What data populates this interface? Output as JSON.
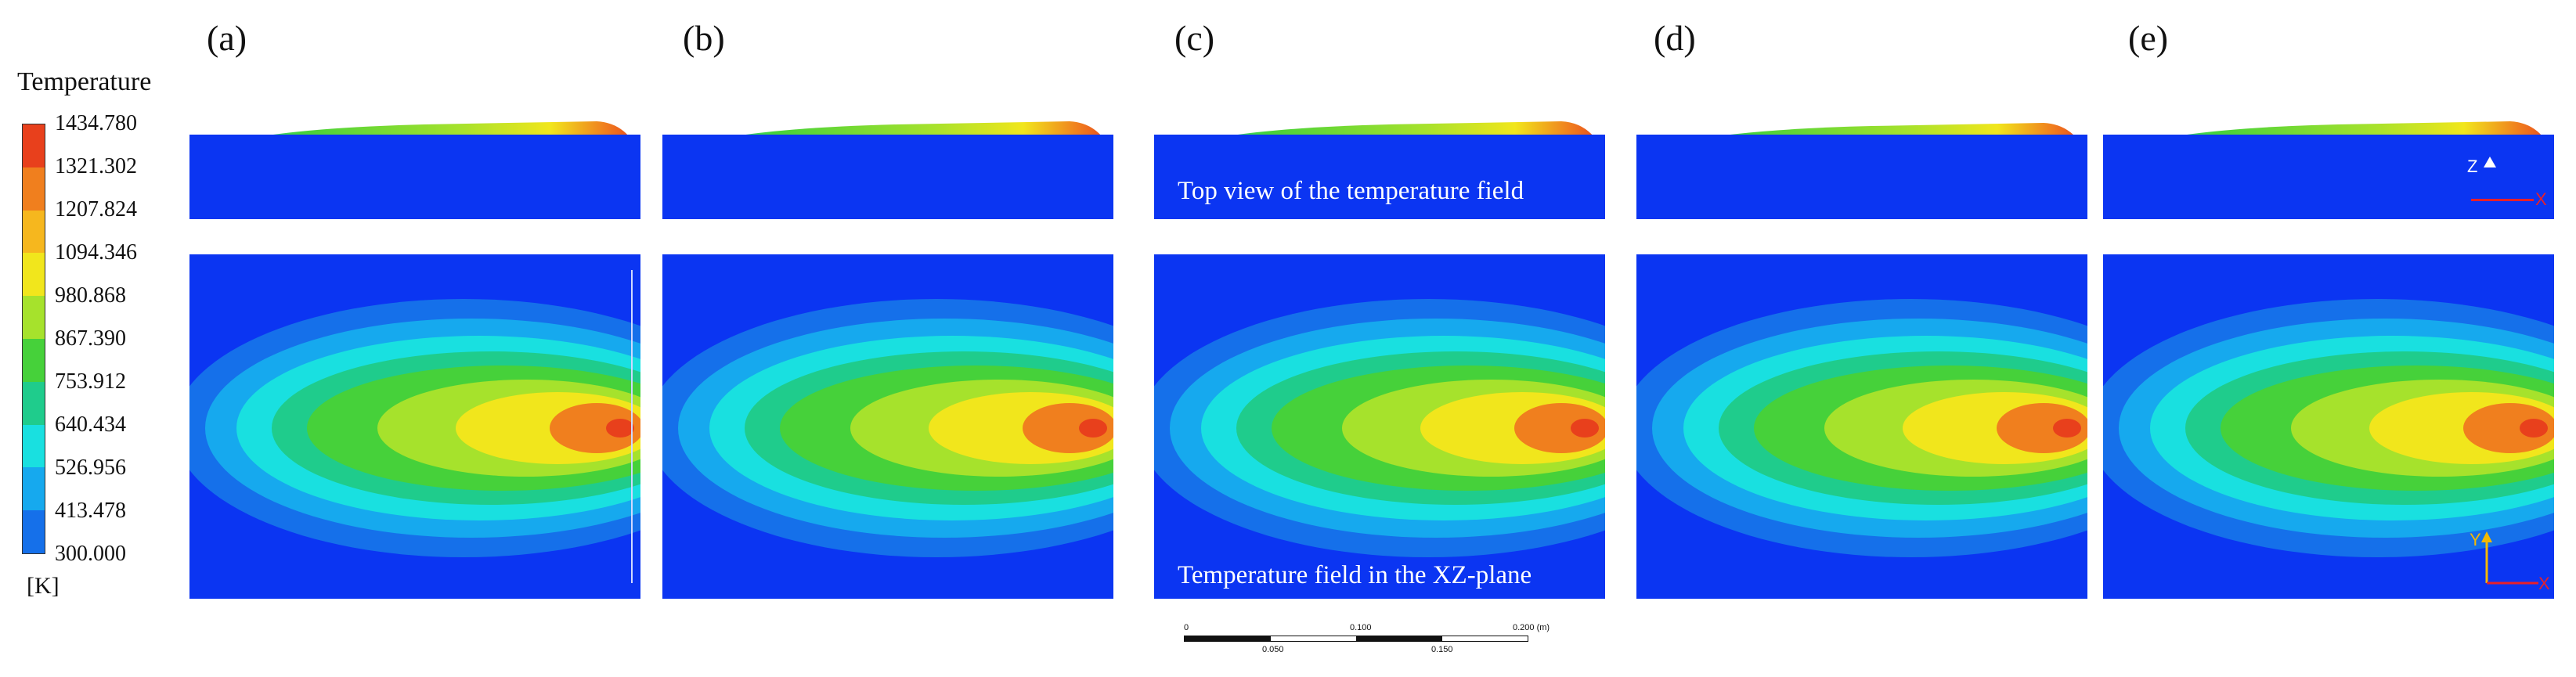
{
  "legend": {
    "title": "Temperature",
    "unit": "[K]",
    "ticks": [
      "1434.780",
      "1321.302",
      "1207.824",
      "1094.346",
      "980.868",
      "867.390",
      "753.912",
      "640.434",
      "526.956",
      "413.478",
      "300.000"
    ],
    "colors": [
      "#e8401c",
      "#f07f1e",
      "#f6b71e",
      "#f1e61c",
      "#a6e22c",
      "#46d13a",
      "#1fcc8c",
      "#19e0e0",
      "#16a9ee",
      "#1570ea"
    ]
  },
  "panels": [
    {
      "label": "(a)"
    },
    {
      "label": "(b)"
    },
    {
      "label": "(c)"
    },
    {
      "label": "(d)"
    },
    {
      "label": "(e)"
    }
  ],
  "annotations": {
    "top_view": "Top view of the temperature field",
    "xz_plane": "Temperature field in the XZ-plane"
  },
  "axes": {
    "side": {
      "up": "Z",
      "right": "X"
    },
    "top": {
      "up": "Y",
      "right": "X"
    }
  },
  "scalebar": {
    "top_labels": [
      "0",
      "0.100",
      "0.200 (m)"
    ],
    "bottom_labels": [
      "0.050",
      "0.150"
    ]
  },
  "colors": {
    "background_field": "#0b35f2",
    "axis_arrow_up": "#f5b800",
    "axis_arrow_right": "#e8202a"
  }
}
